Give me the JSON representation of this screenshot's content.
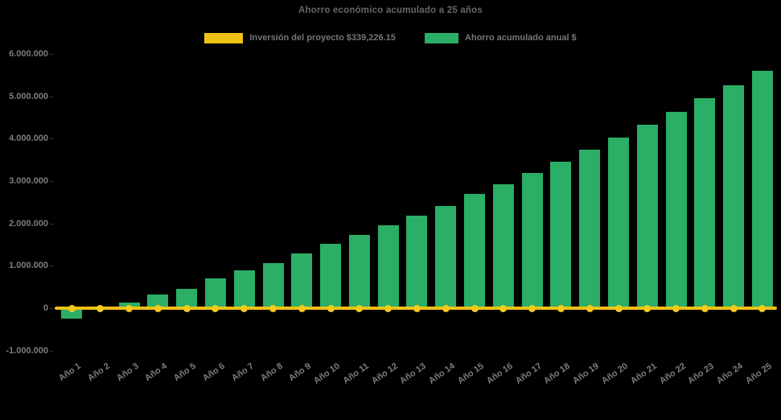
{
  "chart_data": {
    "type": "bar",
    "title": "Ahorro económico acumulado a 25 años",
    "background": "#000000",
    "text_color": "#7d7d7d",
    "grid": false,
    "legend_position": "top",
    "categories": [
      "Año 1",
      "Año 2",
      "Año 3",
      "Año 4",
      "Año 5",
      "Año 6",
      "Año 7",
      "Año 8",
      "Año 9",
      "Año 10",
      "Año 11",
      "Año 12",
      "Año 13",
      "Año 14",
      "Año 15",
      "Año 16",
      "Año 17",
      "Año 18",
      "Año 19",
      "Año 20",
      "Año 21",
      "Año 22",
      "Año 23",
      "Año 24",
      "Año 25"
    ],
    "series": [
      {
        "name": "Inversión del proyecto $339,226.15",
        "type": "line",
        "color": "#edc214",
        "marker_color": "#f4ca1e",
        "values": [
          0,
          0,
          0,
          0,
          0,
          0,
          0,
          0,
          0,
          0,
          0,
          0,
          0,
          0,
          0,
          0,
          0,
          0,
          0,
          0,
          0,
          0,
          0,
          0,
          0
        ]
      },
      {
        "name": "Ahorro acumulado anual $",
        "type": "bar",
        "color": "#2bae66",
        "values": [
          -250000,
          20000,
          130000,
          330000,
          460000,
          700000,
          890000,
          1070000,
          1290000,
          1520000,
          1720000,
          1950000,
          2180000,
          2410000,
          2690000,
          2920000,
          3190000,
          3450000,
          3740000,
          4030000,
          4320000,
          4630000,
          4950000,
          5260000,
          5600000
        ]
      }
    ],
    "ylim": [
      -1000000,
      6000000
    ],
    "y_ticks": [
      {
        "value": 6000000,
        "label": "6.000.000"
      },
      {
        "value": 5000000,
        "label": "5.000.000"
      },
      {
        "value": 4000000,
        "label": "4.000.000"
      },
      {
        "value": 3000000,
        "label": "3.000.000"
      },
      {
        "value": 2000000,
        "label": "2.000.000"
      },
      {
        "value": 1000000,
        "label": "1.000.000"
      },
      {
        "value": 0,
        "label": "0"
      },
      {
        "value": -1000000,
        "label": "-1.000.000"
      }
    ]
  }
}
